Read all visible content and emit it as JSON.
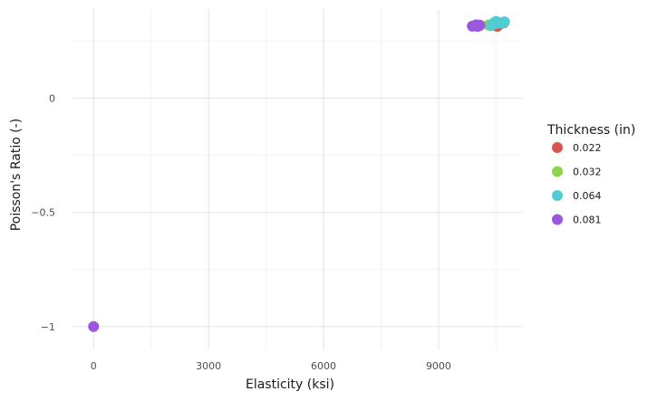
{
  "chart_data": {
    "type": "scatter",
    "title": "",
    "xlabel": "Elasticity (ksi)",
    "ylabel": "Poisson's Ratio (-)",
    "xlim": [
      -550,
      11200
    ],
    "ylim": [
      -1.1,
      0.39
    ],
    "x_ticks": [
      0,
      3000,
      6000,
      9000
    ],
    "x_tick_labels": [
      "0",
      "3000",
      "6000",
      "9000"
    ],
    "y_ticks": [
      -1,
      -0.5,
      0
    ],
    "y_tick_labels": [
      "−1",
      "−0.5",
      "0"
    ],
    "grid": true,
    "legend": {
      "title": "Thickness (in)",
      "placement": "right"
    },
    "series": [
      {
        "name": "0.022",
        "color": "#d95650",
        "points": [
          [
            10480,
            0.318
          ],
          [
            10560,
            0.322
          ],
          [
            10620,
            0.325
          ],
          [
            10450,
            0.329
          ],
          [
            10700,
            0.33
          ],
          [
            10530,
            0.314
          ]
        ]
      },
      {
        "name": "0.032",
        "color": "#8fd24f",
        "points": [
          [
            10350,
            0.318
          ],
          [
            10420,
            0.324
          ],
          [
            10500,
            0.327
          ],
          [
            10300,
            0.32
          ],
          [
            10600,
            0.33
          ]
        ]
      },
      {
        "name": "0.064",
        "color": "#50ccd4",
        "points": [
          [
            10400,
            0.322
          ],
          [
            10470,
            0.327
          ],
          [
            10550,
            0.332
          ],
          [
            10650,
            0.329
          ],
          [
            10720,
            0.334
          ],
          [
            10380,
            0.318
          ],
          [
            10500,
            0.336
          ]
        ]
      },
      {
        "name": "0.081",
        "color": "#9b57df",
        "points": [
          [
            9880,
            0.315
          ],
          [
            9950,
            0.317
          ],
          [
            10020,
            0.314
          ],
          [
            10080,
            0.319
          ],
          [
            9980,
            0.321
          ],
          [
            10050,
            0.316
          ],
          [
            0,
            -1.0
          ]
        ]
      }
    ]
  }
}
